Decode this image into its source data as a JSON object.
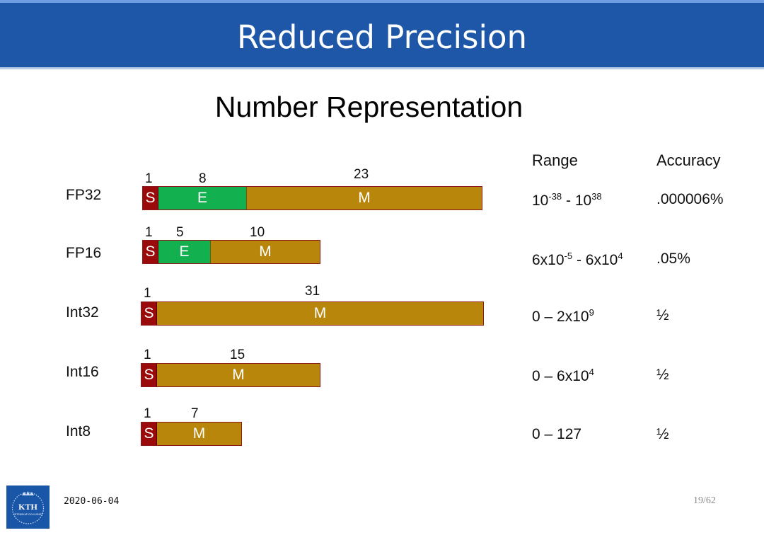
{
  "header": {
    "title": "Reduced Precision"
  },
  "subtitle": "Number Representation",
  "columns": {
    "range": "Range",
    "accuracy": "Accuracy"
  },
  "rows": [
    {
      "label": "FP32",
      "bits": [
        "1",
        "8",
        "23"
      ],
      "segments": [
        "S",
        "E",
        "M"
      ],
      "range": {
        "a_base": "10",
        "a_exp": "-38",
        "sep": " - ",
        "b_base": "10",
        "b_exp": "38"
      },
      "accuracy": ".000006%"
    },
    {
      "label": "FP16",
      "bits": [
        "1",
        "5",
        "10"
      ],
      "segments": [
        "S",
        "E",
        "M"
      ],
      "range": {
        "a_base": "6x10",
        "a_exp": "-5",
        "sep": " - ",
        "b_base": "6x10",
        "b_exp": "4"
      },
      "accuracy": ".05%"
    },
    {
      "label": "Int32",
      "bits": [
        "1",
        "31"
      ],
      "segments": [
        "S",
        "M"
      ],
      "range": {
        "a_base": "0 – 2x10",
        "a_exp": "9"
      },
      "accuracy": "½"
    },
    {
      "label": "Int16",
      "bits": [
        "1",
        "15"
      ],
      "segments": [
        "S",
        "M"
      ],
      "range": {
        "a_base": "0 – 6x10",
        "a_exp": "4"
      },
      "accuracy": "½"
    },
    {
      "label": "Int8",
      "bits": [
        "1",
        "7"
      ],
      "segments": [
        "S",
        "M"
      ],
      "range": {
        "a_base": "0 – 127"
      },
      "accuracy": "½"
    }
  ],
  "footer": {
    "logo_text": "KTH",
    "logo_subtext": "VETENSKAP OCH KONST",
    "date": "2020-06-04",
    "page": "19/62"
  },
  "colors": {
    "header": "#1e57a8",
    "sign": "#9b0a0a",
    "exponent": "#12b04f",
    "mantissa": "#b8860b"
  }
}
